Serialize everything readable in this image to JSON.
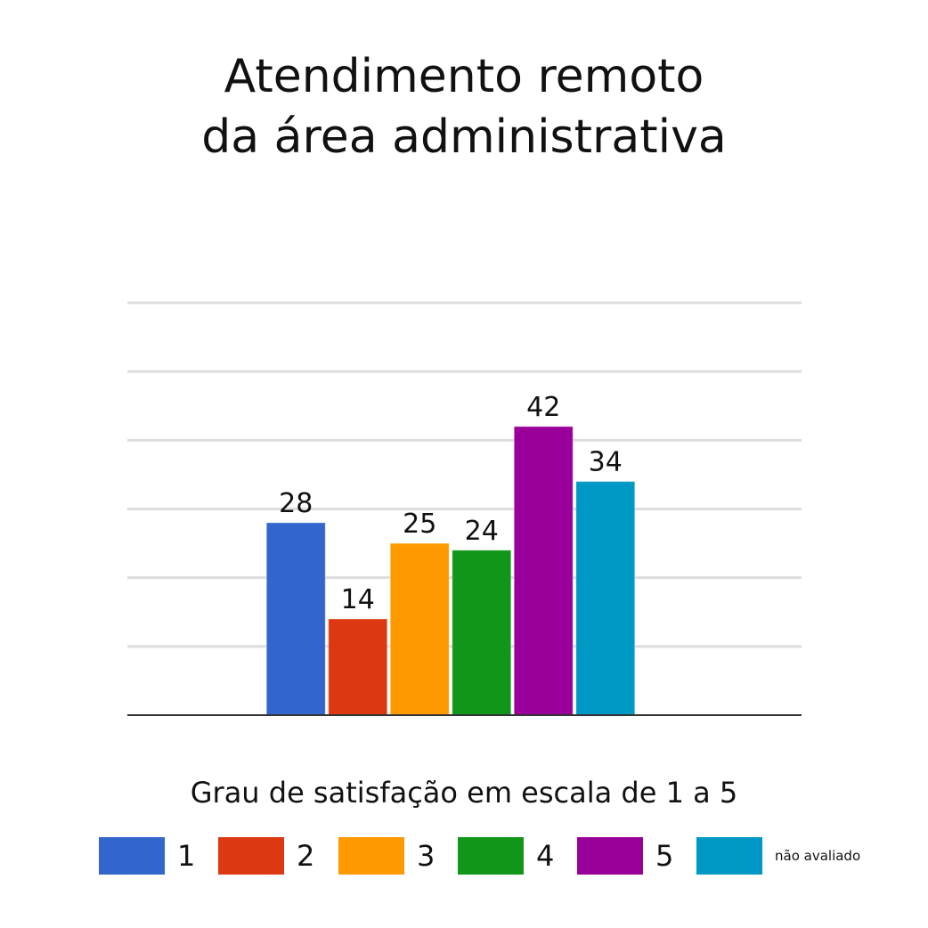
{
  "chart_data": {
    "type": "bar",
    "title": [
      "Atendimento remoto",
      "da área administrativa"
    ],
    "xlabel": "Grau de satisfação em escala de 1 a 5",
    "ylabel": "",
    "categories": [
      "1",
      "2",
      "3",
      "4",
      "5",
      "não avaliado"
    ],
    "values": [
      28,
      14,
      25,
      24,
      42,
      34
    ],
    "data_labels": [
      "28",
      "14",
      "25",
      "24",
      "42",
      "34"
    ],
    "colors": [
      "#3366cc",
      "#dc3912",
      "#ff9900",
      "#109618",
      "#990099",
      "#0099c6"
    ],
    "ylim": [
      0,
      60
    ],
    "grid": true,
    "legend_position": "bottom"
  }
}
